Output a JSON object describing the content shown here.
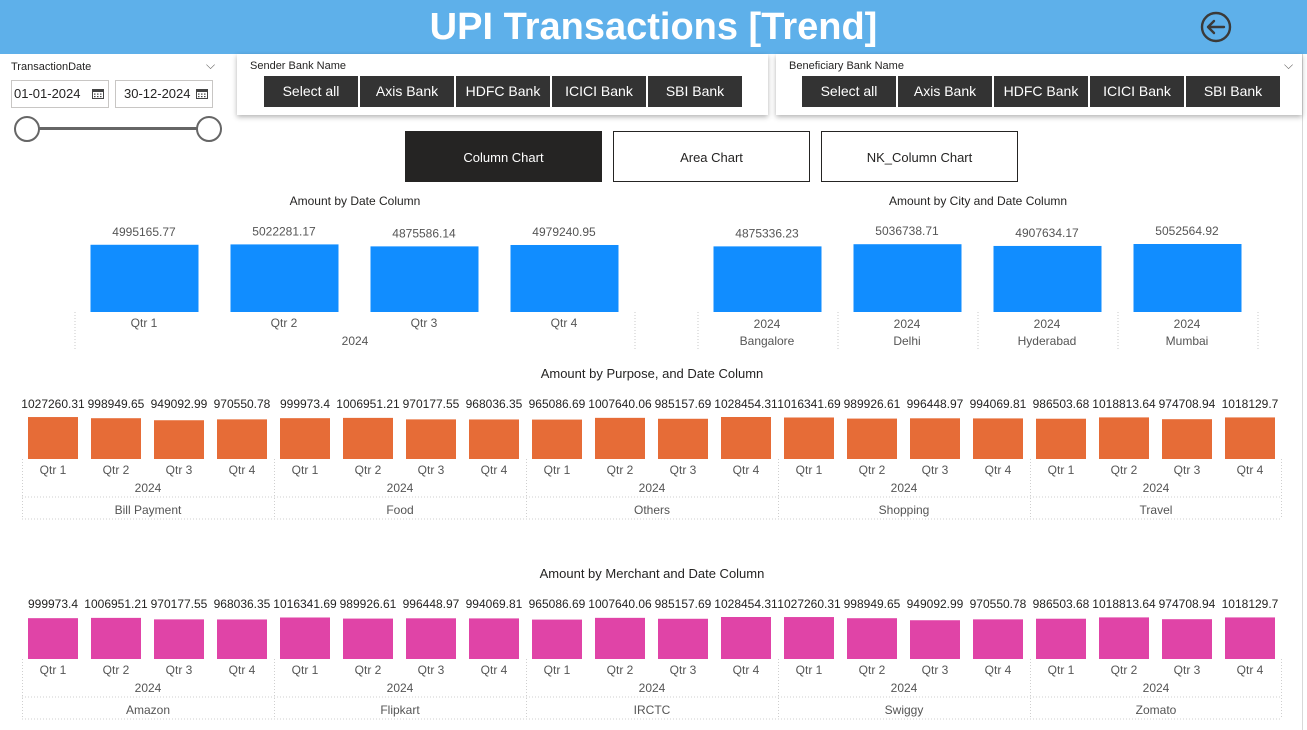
{
  "header": {
    "title": "UPI Transactions [Trend]",
    "back_icon": "back-arrow-icon"
  },
  "date_slicer": {
    "label": "TransactionDate",
    "start": "01-01-2024",
    "end": "30-12-2024",
    "start_fraction": 0.0,
    "end_fraction": 1.0
  },
  "sender_bank": {
    "label": "Sender Bank Name",
    "buttons": [
      "Select all",
      "Axis Bank",
      "HDFC Bank",
      "ICICI Bank",
      "SBI Bank"
    ]
  },
  "beneficiary_bank": {
    "label": "Beneficiary Bank Name",
    "buttons": [
      "Select all",
      "Axis Bank",
      "HDFC Bank",
      "ICICI Bank",
      "SBI Bank"
    ]
  },
  "tabs": [
    {
      "label": "Column Chart",
      "active": true
    },
    {
      "label": "Area Chart",
      "active": false
    },
    {
      "label": "NK_Column Chart",
      "active": false
    }
  ],
  "colors": {
    "header": "#5eb0ea",
    "blue": "#118dff",
    "orange": "#e66c37",
    "pink": "#e044a7",
    "dark": "#252423"
  },
  "chart_data": [
    {
      "type": "bar",
      "title": "Amount by Date Column",
      "year": "2024",
      "categories": [
        "Qtr 1",
        "Qtr 2",
        "Qtr 3",
        "Qtr 4"
      ],
      "values": [
        4995165.77,
        5022281.17,
        4875586.14,
        4979240.95
      ],
      "labels": [
        "4995165.77",
        "5022281.17",
        "4875586.14",
        "4979240.95"
      ]
    },
    {
      "type": "bar",
      "title": "Amount by City and Date Column",
      "year": "2024",
      "categories": [
        "Bangalore",
        "Delhi",
        "Hyderabad",
        "Mumbai"
      ],
      "values": [
        4875336.23,
        5036738.71,
        4907634.17,
        5052564.92
      ],
      "labels": [
        "4875336.23",
        "5036738.71",
        "4907634.17",
        "5052564.92"
      ]
    },
    {
      "type": "bar",
      "title": "Amount by Purpose, and Date Column",
      "year": "2024",
      "quarters": [
        "Qtr 1",
        "Qtr 2",
        "Qtr 3",
        "Qtr 4"
      ],
      "groups": [
        {
          "name": "Bill Payment",
          "values": [
            1027260.31,
            998949.65,
            949092.99,
            970550.78
          ],
          "labels": [
            "1027260.31",
            "998949.65",
            "949092.99",
            "970550.78"
          ]
        },
        {
          "name": "Food",
          "values": [
            999973.4,
            1006951.21,
            970177.55,
            968036.35
          ],
          "labels": [
            "999973.4",
            "1006951.21",
            "970177.55",
            "968036.35"
          ]
        },
        {
          "name": "Others",
          "values": [
            965086.69,
            1007640.06,
            985157.69,
            1028454.31
          ],
          "labels": [
            "965086.69",
            "1007640.06",
            "985157.69",
            "1028454.31"
          ]
        },
        {
          "name": "Shopping",
          "values": [
            1016341.69,
            989926.61,
            996448.97,
            994069.81
          ],
          "labels": [
            "1016341.69",
            "989926.61",
            "996448.97",
            "994069.81"
          ]
        },
        {
          "name": "Travel",
          "values": [
            986503.68,
            1018813.64,
            974708.94,
            1018129.7
          ],
          "labels": [
            "986503.68",
            "1018813.64",
            "974708.94",
            "1018129.7"
          ]
        }
      ]
    },
    {
      "type": "bar",
      "title": "Amount by Merchant and Date Column",
      "year": "2024",
      "quarters": [
        "Qtr 1",
        "Qtr 2",
        "Qtr 3",
        "Qtr 4"
      ],
      "groups": [
        {
          "name": "Amazon",
          "values": [
            999973.4,
            1006951.21,
            970177.55,
            968036.35
          ],
          "labels": [
            "999973.4",
            "1006951.21",
            "970177.55",
            "968036.35"
          ]
        },
        {
          "name": "Flipkart",
          "values": [
            1016341.69,
            989926.61,
            996448.97,
            994069.81
          ],
          "labels": [
            "1016341.69",
            "989926.61",
            "996448.97",
            "994069.81"
          ]
        },
        {
          "name": "IRCTC",
          "values": [
            965086.69,
            1007640.06,
            985157.69,
            1028454.31
          ],
          "labels": [
            "965086.69",
            "1007640.06",
            "985157.69",
            "1028454.31"
          ]
        },
        {
          "name": "Swiggy",
          "values": [
            1027260.31,
            998949.65,
            949092.99,
            970550.78
          ],
          "labels": [
            "1027260.31",
            "998949.65",
            "949092.99",
            "970550.78"
          ]
        },
        {
          "name": "Zomato",
          "values": [
            986503.68,
            1018813.64,
            974708.94,
            1018129.7
          ],
          "labels": [
            "986503.68",
            "1018813.64",
            "974708.94",
            "1018129.7"
          ]
        }
      ]
    }
  ]
}
